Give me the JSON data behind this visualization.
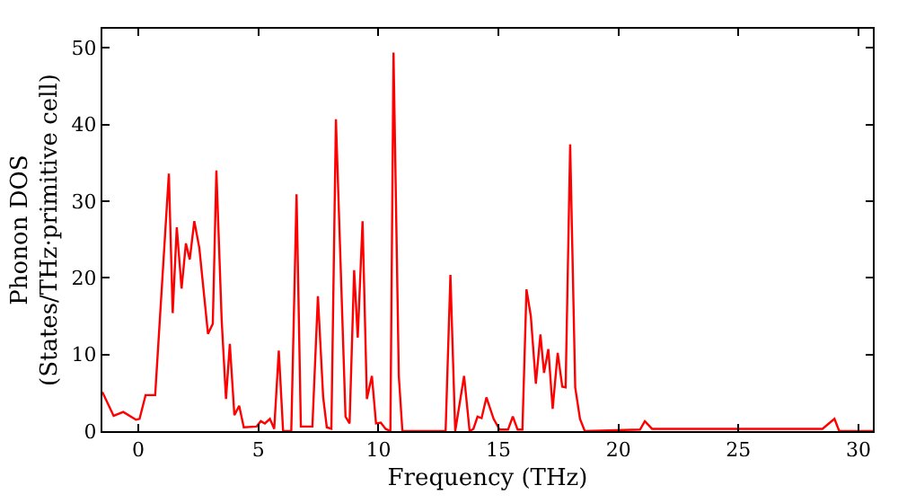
{
  "chart_data": {
    "type": "line",
    "xlabel": "Frequency (THz)",
    "ylabel": "Phonon DOS\n(States/THz·primitive cell)",
    "x": [
      -1.5,
      -1.03,
      -0.63,
      -0.1,
      0.05,
      0.3,
      0.7,
      1.27,
      1.43,
      1.6,
      1.8,
      1.98,
      2.14,
      2.33,
      2.54,
      2.9,
      3.1,
      3.25,
      3.47,
      3.65,
      3.81,
      4.0,
      4.2,
      4.39,
      4.92,
      5.1,
      5.27,
      5.48,
      5.66,
      5.85,
      6.03,
      6.37,
      6.59,
      6.77,
      7.25,
      7.48,
      7.7,
      7.85,
      8.04,
      8.23,
      8.63,
      8.8,
      8.99,
      9.14,
      9.34,
      9.52,
      9.73,
      9.9,
      10.1,
      10.3,
      10.5,
      10.63,
      10.85,
      11.0,
      12.8,
      13.0,
      13.2,
      13.57,
      13.8,
      13.96,
      14.13,
      14.3,
      14.5,
      14.8,
      15.05,
      15.4,
      15.6,
      15.8,
      16.0,
      16.17,
      16.35,
      16.56,
      16.75,
      16.9,
      17.08,
      17.26,
      17.47,
      17.66,
      17.8,
      17.99,
      18.2,
      18.4,
      18.6,
      20.9,
      21.1,
      21.4,
      28.5,
      29.0,
      29.2,
      30.6
    ],
    "series": [
      {
        "color": "#ff0000",
        "values": [
          5.1,
          2,
          2.5,
          1.5,
          1.6,
          4.7,
          4.7,
          33.6,
          15.4,
          26.6,
          18.6,
          24.5,
          22.4,
          27.4,
          23.9,
          12.7,
          14,
          34,
          14.5,
          4.2,
          11.4,
          2.1,
          3.3,
          0.5,
          0.6,
          1.3,
          1.0,
          1.6,
          0.3,
          10.5,
          0,
          0,
          30.9,
          0.6,
          0.6,
          17.6,
          4.4,
          0.5,
          0.3,
          40.7,
          1.9,
          1.0,
          21,
          12.2,
          27.4,
          4.2,
          7.2,
          1.0,
          1.1,
          0.3,
          0,
          49.4,
          7.2,
          0,
          0,
          20.4,
          0,
          7.2,
          0,
          0.3,
          1.9,
          1.7,
          4.4,
          1.6,
          0.2,
          0.2,
          1.9,
          0.2,
          0.2,
          18.5,
          15,
          6.2,
          12.6,
          7.6,
          10.7,
          2.9,
          10.2,
          5.8,
          5.7,
          37.4,
          5.7,
          1.6,
          0,
          0.2,
          1.3,
          0.3,
          0.3,
          1.6,
          0,
          0
        ]
      }
    ],
    "xlim": [
      -1.5,
      30.6
    ],
    "ylim": [
      0,
      52.5
    ],
    "xticks": [
      0,
      5,
      10,
      15,
      20,
      25,
      30
    ],
    "yticks": [
      0,
      10,
      20,
      30,
      40,
      50
    ],
    "marker": "none",
    "line_style": "solid"
  }
}
